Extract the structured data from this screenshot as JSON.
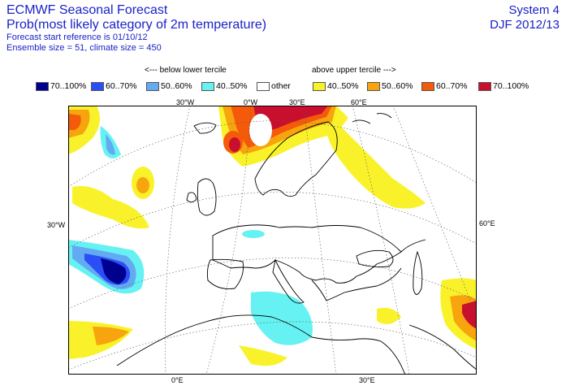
{
  "header": {
    "title_1": "ECMWF Seasonal Forecast",
    "title_2": "Prob(most likely category of 2m temperature)",
    "meta_1": "Forecast start reference is 01/10/12",
    "meta_2": "Ensemble size = 51, climate size = 450",
    "system": "System 4",
    "season": "DJF 2012/13"
  },
  "legend": {
    "below_heading": "<--- below lower tercile",
    "above_heading": "above upper tercile --->",
    "items": [
      {
        "label": "70..100%",
        "color": "#00008f"
      },
      {
        "label": "60..70%",
        "color": "#2a4ff6"
      },
      {
        "label": "50..60%",
        "color": "#63aaf2"
      },
      {
        "label": "40..50%",
        "color": "#66f2f2"
      },
      {
        "label": "other",
        "color": "#ffffff"
      },
      {
        "label": "40..50%",
        "color": "#f9f22a"
      },
      {
        "label": "50..60%",
        "color": "#f7a40e"
      },
      {
        "label": "60..70%",
        "color": "#f55a0b"
      },
      {
        "label": "70..100%",
        "color": "#c8102e"
      }
    ]
  },
  "map": {
    "labels": {
      "top_30w": "30°W",
      "top_0": "0°W",
      "top_30e": "30°E",
      "top_60e": "60°E",
      "left_30w": "30°W",
      "right_60e": "60°E",
      "bottom_0e": "0°E",
      "bottom_30e": "30°E"
    }
  }
}
